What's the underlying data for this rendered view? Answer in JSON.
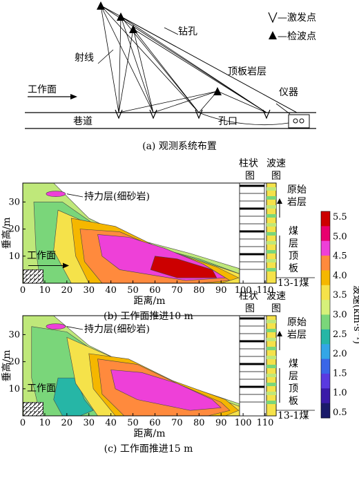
{
  "panel_a": {
    "caption": "(a) 观测系统布置",
    "legend_source": "—激发点",
    "legend_receiver": "—检波点",
    "label_drill": "钻孔",
    "label_ray": "射线",
    "label_roof": "顶板岩层",
    "label_face": "工作面",
    "label_instrument": "仪器",
    "label_roadway": "巷道",
    "label_hole": "孔口"
  },
  "panel_b": {
    "caption": "(b) 工作面推进10 m",
    "annotation": "持力层(细砂岩)",
    "face_label": "工作面",
    "col_header_1": "柱状",
    "col_header_1b": "图",
    "col_header_2": "波速",
    "col_header_2b": "图",
    "side_label_1": "原始",
    "side_label_1b": "岩层",
    "side_label_2": [
      "煤",
      "层",
      "顶",
      "板"
    ],
    "seam_label": "13-1煤"
  },
  "panel_c": {
    "caption": "(c) 工作面推进15 m",
    "annotation": "持力层(细砂岩)",
    "face_label": "工作面",
    "col_header_1": "柱状",
    "col_header_1b": "图",
    "col_header_2": "波速",
    "col_header_2b": "图",
    "side_label_1": "原始",
    "side_label_1b": "岩层",
    "side_label_2": [
      "煤",
      "层",
      "顶",
      "板"
    ],
    "seam_label": "13-1煤"
  },
  "colorbar": {
    "title": "波速(km·s⁻¹)",
    "ticks": [
      "5.5",
      "5.0",
      "4.5",
      "4.0",
      "3.5",
      "3.0",
      "2.5",
      "2.0",
      "1.5",
      "1.0",
      "0.5"
    ],
    "colors": [
      "#cc0000",
      "#e8006e",
      "#ee40d8",
      "#ff8a3d",
      "#f5b700",
      "#f5e24a",
      "#d6f07a",
      "#7ad67a",
      "#26b6a6",
      "#33a6e6",
      "#3a66e8",
      "#5a3ae0",
      "#3a1aa8",
      "#1a1a6a"
    ]
  },
  "chart_data": [
    {
      "type": "heatmap",
      "panel": "b",
      "xlabel": "距离/m",
      "ylabel": "垂高/m",
      "x_ticks": [
        0,
        10,
        20,
        30,
        40,
        50,
        60,
        70,
        80,
        90,
        100,
        110
      ],
      "y_ticks": [
        10,
        20,
        30
      ],
      "xlim": [
        0,
        115
      ],
      "ylim": [
        0,
        37
      ],
      "value_unit": "km·s⁻¹",
      "value_range": [
        0.5,
        5.5
      ]
    },
    {
      "type": "heatmap",
      "panel": "c",
      "xlabel": "距离/m",
      "ylabel": "垂高/m",
      "x_ticks": [
        0,
        10,
        20,
        30,
        40,
        50,
        60,
        70,
        80,
        90,
        100,
        110
      ],
      "y_ticks": [
        10,
        20,
        30
      ],
      "xlim": [
        0,
        115
      ],
      "ylim": [
        0,
        37
      ],
      "value_unit": "km·s⁻¹",
      "value_range": [
        0.5,
        5.5
      ]
    }
  ]
}
